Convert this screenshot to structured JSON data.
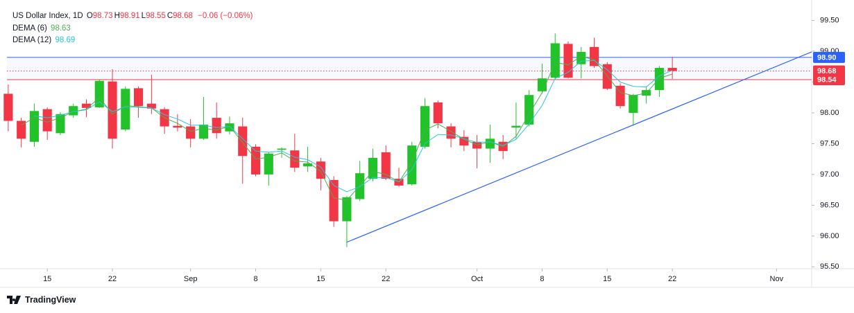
{
  "header": {
    "title": "US Dollar Index, 1D",
    "change": "−0.06 (−0.06%)"
  },
  "footer": {
    "brand": "TradingView"
  },
  "chart_data": {
    "type": "candlestick",
    "ohlc_keys": [
      "O",
      "H",
      "L",
      "C"
    ],
    "x": [
      0,
      1,
      2,
      3,
      4,
      5,
      6,
      7,
      8,
      9,
      10,
      11,
      12,
      13,
      14,
      15,
      16,
      17,
      18,
      19,
      20,
      21,
      22,
      23,
      24,
      25,
      26,
      27,
      28,
      29,
      30,
      31,
      32,
      33,
      34,
      35,
      36,
      37,
      38,
      39,
      40,
      41,
      42,
      43,
      44,
      45,
      46,
      47,
      48,
      49,
      50,
      51
    ],
    "open": [
      98.31,
      97.87,
      97.53,
      98.06,
      97.67,
      97.96,
      98.15,
      98.09,
      98.51,
      97.73,
      98.4,
      98.15,
      98.06,
      97.79,
      97.78,
      97.58,
      97.92,
      97.7,
      97.78,
      97.45,
      97.0,
      97.4,
      97.39,
      97.13,
      97.21,
      96.91,
      96.24,
      96.6,
      96.93,
      97.36,
      96.93,
      96.84,
      97.45,
      98.17,
      97.78,
      97.61,
      97.53,
      97.42,
      97.53,
      97.76,
      97.81,
      98.35,
      98.57,
      99.12,
      98.79,
      99.07,
      98.79,
      98.44,
      98.0,
      98.28,
      98.37,
      98.73
    ],
    "high": [
      98.46,
      97.92,
      98.15,
      98.09,
      98.01,
      98.15,
      98.22,
      98.54,
      98.71,
      98.43,
      98.43,
      98.62,
      98.09,
      97.98,
      97.9,
      98.26,
      98.17,
      97.94,
      97.92,
      97.49,
      97.36,
      97.44,
      97.66,
      97.45,
      97.27,
      96.97,
      96.65,
      97.22,
      97.42,
      97.47,
      97.11,
      97.53,
      98.24,
      98.2,
      97.83,
      97.72,
      97.64,
      97.81,
      97.64,
      98.17,
      98.37,
      98.8,
      99.29,
      99.16,
      99.07,
      99.22,
      98.82,
      98.48,
      98.31,
      98.43,
      98.76,
      98.91
    ],
    "low": [
      97.7,
      97.44,
      97.45,
      97.56,
      97.64,
      97.92,
      97.93,
      98.08,
      97.42,
      97.7,
      97.92,
      97.98,
      97.66,
      97.7,
      97.44,
      97.56,
      97.58,
      97.65,
      96.85,
      96.97,
      96.82,
      97.27,
      97.04,
      97.04,
      96.74,
      96.15,
      95.82,
      96.57,
      96.89,
      96.91,
      96.8,
      96.82,
      97.42,
      97.75,
      97.44,
      97.38,
      97.1,
      97.19,
      97.25,
      97.58,
      97.78,
      98.31,
      98.54,
      98.56,
      98.56,
      98.73,
      98.37,
      98.07,
      97.79,
      98.15,
      98.26,
      98.55
    ],
    "close": [
      97.87,
      97.58,
      98.03,
      97.7,
      97.98,
      98.11,
      98.08,
      98.52,
      97.58,
      98.39,
      98.11,
      98.07,
      97.78,
      97.76,
      97.58,
      97.81,
      97.67,
      97.83,
      97.3,
      97.0,
      97.34,
      97.42,
      97.11,
      97.18,
      96.93,
      96.24,
      96.63,
      97.02,
      97.27,
      96.93,
      96.82,
      97.47,
      98.11,
      97.83,
      97.58,
      97.47,
      97.42,
      97.58,
      97.38,
      97.79,
      98.29,
      98.56,
      99.13,
      98.57,
      98.99,
      98.76,
      98.39,
      98.11,
      98.29,
      98.37,
      98.73,
      98.68
    ],
    "up_color": "#22c32a",
    "down_color": "#f23645",
    "series": [
      {
        "name": "DEMA (6)",
        "color": "#4caf50",
        "values": [
          null,
          97.8,
          97.92,
          97.85,
          97.92,
          98.02,
          98.06,
          98.25,
          97.98,
          98.12,
          98.1,
          98.08,
          97.92,
          97.83,
          97.7,
          97.75,
          97.72,
          97.78,
          97.52,
          97.25,
          97.28,
          97.35,
          97.22,
          97.2,
          97.05,
          96.62,
          96.58,
          96.82,
          97.05,
          97.0,
          96.88,
          97.2,
          97.72,
          97.82,
          97.7,
          97.57,
          97.48,
          97.53,
          97.45,
          97.62,
          97.98,
          98.33,
          98.82,
          98.78,
          98.92,
          98.86,
          98.6,
          98.33,
          98.28,
          98.32,
          98.56,
          98.63
        ]
      },
      {
        "name": "DEMA (12)",
        "color": "#26c6da",
        "values": [
          null,
          null,
          97.95,
          97.92,
          97.96,
          98.02,
          98.05,
          98.18,
          98.02,
          98.1,
          98.09,
          98.08,
          97.97,
          97.9,
          97.8,
          97.8,
          97.76,
          97.78,
          97.58,
          97.38,
          97.36,
          97.38,
          97.28,
          97.24,
          97.12,
          96.82,
          96.72,
          96.8,
          96.95,
          96.95,
          96.88,
          97.08,
          97.5,
          97.65,
          97.64,
          97.58,
          97.52,
          97.53,
          97.47,
          97.57,
          97.82,
          98.12,
          98.56,
          98.66,
          98.84,
          98.85,
          98.7,
          98.5,
          98.43,
          98.42,
          98.6,
          98.69
        ]
      }
    ],
    "hlines": [
      {
        "value": 98.9,
        "label": "98.90",
        "color": "#2962ff",
        "style": "solid"
      },
      {
        "value": 98.68,
        "label": "98.68",
        "color": "#f23645",
        "style": "dotted"
      },
      {
        "value": 98.54,
        "label": "98.54",
        "color": "#f23645",
        "style": "solid"
      }
    ],
    "trendline": {
      "x": [
        26,
        61.7
      ],
      "y": [
        95.9,
        98.99
      ],
      "color": "#2962ff"
    },
    "xlim": [
      -0.1,
      61.7
    ],
    "ylim": [
      95.47,
      99.72
    ],
    "xticks": [
      {
        "value": 3,
        "label": "15"
      },
      {
        "value": 8,
        "label": "22"
      },
      {
        "value": 14,
        "label": "Sep"
      },
      {
        "value": 19,
        "label": "8"
      },
      {
        "value": 24,
        "label": "15"
      },
      {
        "value": 29,
        "label": "22"
      },
      {
        "value": 36,
        "label": "Oct"
      },
      {
        "value": 41,
        "label": "8"
      },
      {
        "value": 46,
        "label": "15"
      },
      {
        "value": 51,
        "label": "22"
      },
      {
        "value": 59,
        "label": "Nov"
      }
    ],
    "yticks": [
      {
        "value": 95.5,
        "label": "95.50"
      },
      {
        "value": 96,
        "label": "96.00"
      },
      {
        "value": 96.5,
        "label": "96.50"
      },
      {
        "value": 97,
        "label": "97.00"
      },
      {
        "value": 97.5,
        "label": "97.50"
      },
      {
        "value": 98,
        "label": "98.00"
      },
      {
        "value": 98.5,
        "label": "98.50"
      },
      {
        "value": 99,
        "label": "99.00"
      },
      {
        "value": 99.5,
        "label": "99.50"
      }
    ]
  }
}
